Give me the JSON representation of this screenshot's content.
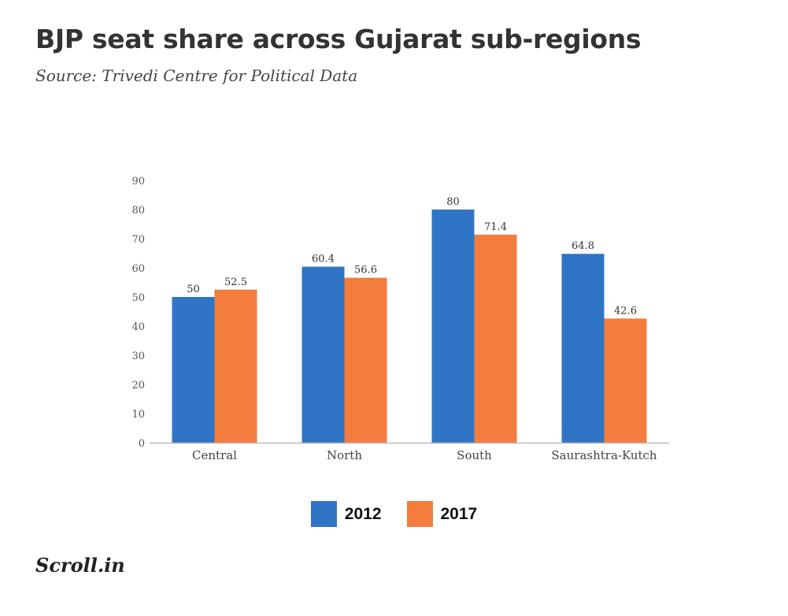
{
  "title": "BJP seat share across Gujarat sub-regions",
  "subtitle": "Source: Trivedi Centre for Political Data",
  "logo": "Scroll.in",
  "colors": {
    "2012": "#3075c5",
    "2017": "#f47c3c",
    "axis": "#bbbbbb"
  },
  "chart_data": {
    "type": "bar",
    "categories": [
      "Central",
      "North",
      "South",
      "Saurashtra-Kutch"
    ],
    "series": [
      {
        "name": "2012",
        "values": [
          50,
          60.4,
          80,
          64.8
        ]
      },
      {
        "name": "2017",
        "values": [
          52.5,
          56.6,
          71.4,
          42.6
        ]
      }
    ],
    "data_labels": [
      [
        "50",
        "60.4",
        "80",
        "64.8"
      ],
      [
        "52.5",
        "56.6",
        "71.4",
        "42.6"
      ]
    ],
    "yticks": [
      "0",
      "10",
      "20",
      "30",
      "40",
      "50",
      "60",
      "70",
      "80",
      "90"
    ],
    "ylim": [
      0,
      90
    ],
    "grid": false,
    "legend_position": "bottom"
  }
}
